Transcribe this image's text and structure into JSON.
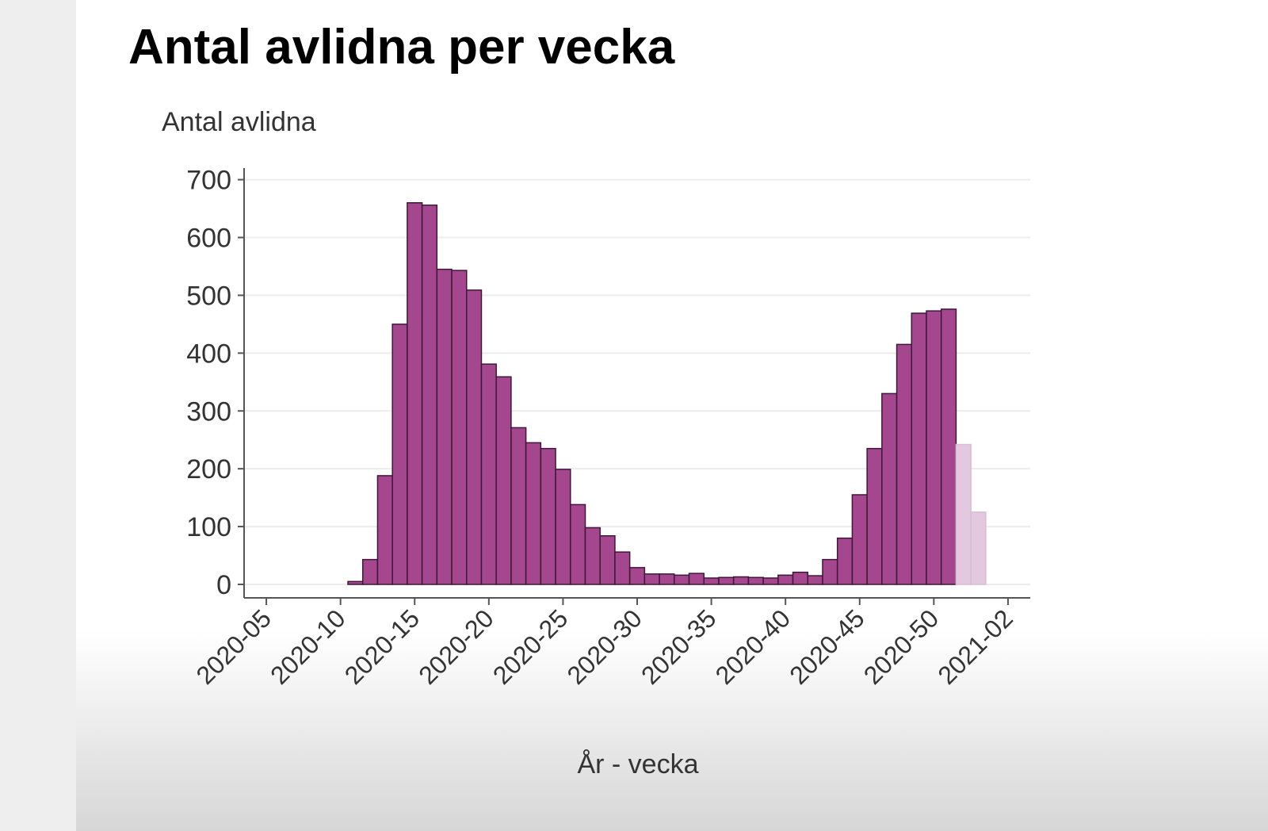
{
  "chart_data": {
    "type": "bar",
    "title": "Antal avlidna per vecka",
    "y_label": "Antal avlidna",
    "x_label": "År - vecka",
    "categories": [
      null,
      "2020-05",
      null,
      null,
      null,
      null,
      "2020-10",
      null,
      null,
      null,
      null,
      "2020-15",
      null,
      null,
      null,
      null,
      "2020-20",
      null,
      null,
      null,
      null,
      "2020-25",
      null,
      null,
      null,
      null,
      "2020-30",
      null,
      null,
      null,
      null,
      "2020-35",
      null,
      null,
      null,
      null,
      "2020-40",
      null,
      null,
      null,
      null,
      "2020-45",
      null,
      null,
      null,
      null,
      "2020-50",
      null,
      null,
      null,
      null,
      "2021-02",
      null
    ],
    "values": [
      null,
      null,
      null,
      null,
      null,
      null,
      null,
      5,
      43,
      188,
      450,
      660,
      656,
      545,
      543,
      509,
      381,
      359,
      271,
      245,
      235,
      199,
      138,
      98,
      84,
      56,
      29,
      18,
      18,
      16,
      19,
      11,
      12,
      13,
      12,
      11,
      16,
      21,
      15,
      43,
      80,
      155,
      235,
      330,
      415,
      469,
      473,
      476,
      242,
      125,
      null,
      null,
      null
    ],
    "colors": [
      null,
      null,
      null,
      null,
      null,
      null,
      null,
      "#a4478f",
      "#a4478f",
      "#a4478f",
      "#a4478f",
      "#a4478f",
      "#a4478f",
      "#a4478f",
      "#a4478f",
      "#a4478f",
      "#a4478f",
      "#a4478f",
      "#a4478f",
      "#a4478f",
      "#a4478f",
      "#a4478f",
      "#a4478f",
      "#a4478f",
      "#a4478f",
      "#a4478f",
      "#a4478f",
      "#a4478f",
      "#a4478f",
      "#a4478f",
      "#a4478f",
      "#a4478f",
      "#a4478f",
      "#a4478f",
      "#a4478f",
      "#a4478f",
      "#a4478f",
      "#a4478f",
      "#a4478f",
      "#a4478f",
      "#a4478f",
      "#a4478f",
      "#a4478f",
      "#a4478f",
      "#a4478f",
      "#a4478f",
      "#a4478f",
      "#a4478f",
      "#e3c9df",
      "#e3c9df",
      null,
      null,
      null
    ],
    "ylim": [
      0,
      720
    ],
    "yticks": [
      0,
      100,
      200,
      300,
      400,
      500,
      600,
      700
    ],
    "grid": true
  }
}
